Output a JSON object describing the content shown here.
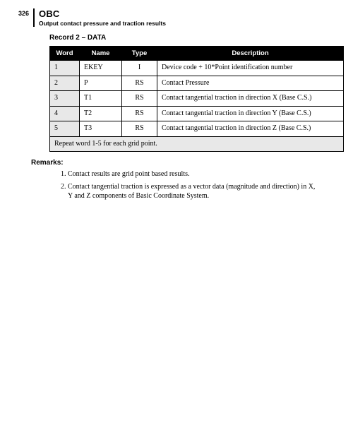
{
  "header": {
    "page_number": "326",
    "title": "OBC",
    "subtitle": "Output contact pressure and traction results"
  },
  "section_title": "Record 2 – DATA",
  "table": {
    "columns": [
      "Word",
      "Name",
      "Type",
      "Description"
    ],
    "rows": [
      {
        "word": "1",
        "name": "EKEY",
        "type": "I",
        "desc": "Device code + 10*Point identification number"
      },
      {
        "word": "2",
        "name": "P",
        "type": "RS",
        "desc": "Contact Pressure"
      },
      {
        "word": "3",
        "name": "T1",
        "type": "RS",
        "desc": "Contact tangential traction in direction X (Base C.S.)"
      },
      {
        "word": "4",
        "name": "T2",
        "type": "RS",
        "desc": "Contact tangential traction in direction Y (Base C.S.)"
      },
      {
        "word": "5",
        "name": "T3",
        "type": "RS",
        "desc": "Contact tangential traction in direction Z (Base C.S.)"
      }
    ],
    "footer": "Repeat word 1-5 for each grid point."
  },
  "remarks": {
    "label": "Remarks:",
    "items": [
      "Contact results are grid point based results.",
      "Contact tangential traction is expressed as a vector data (magnitude and direction) in X, Y and Z components of Basic Coordinate System."
    ]
  }
}
